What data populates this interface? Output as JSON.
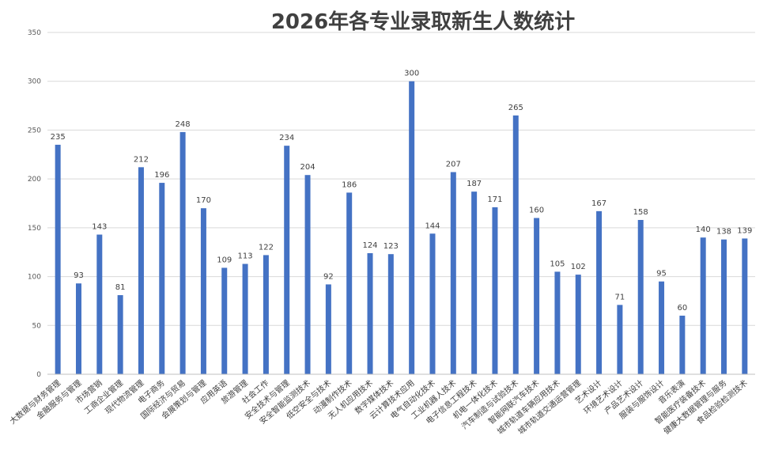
{
  "chart_data": {
    "type": "bar",
    "title": "2026年各专业录取新生人数统计",
    "xlabel": "",
    "ylabel": "",
    "ylim": [
      0,
      350
    ],
    "yticks": [
      0,
      50,
      100,
      150,
      200,
      250,
      300,
      350
    ],
    "grid": true,
    "bar_color": "#4472c4",
    "categories": [
      "大数据与财务管理",
      "金融服务与管理",
      "市场营销",
      "工商企业管理",
      "现代物流管理",
      "电子商务",
      "国际经济与贸易",
      "会展策划与管理",
      "应用英语",
      "旅游管理",
      "社会工作",
      "安全技术与管理",
      "安全智能监测技术",
      "低空安全与技术",
      "动漫制作技术",
      "无人机应用技术",
      "数字媒体技术",
      "云计算技术应用",
      "电气自动化技术",
      "工业机器人技术",
      "电子信息工程技术",
      "机电一体化技术",
      "汽车制造与试验技术",
      "智能网联汽车技术",
      "城市轨道车辆应用技术",
      "城市轨道交通运营管理",
      "艺术设计",
      "环境艺术设计",
      "产品艺术设计",
      "服装与服饰设计",
      "音乐表演",
      "智能医疗装备技术",
      "健康大数据管理与服务",
      "食品检验检测技术"
    ],
    "values": [
      235,
      93,
      143,
      81,
      212,
      196,
      248,
      170,
      109,
      113,
      122,
      234,
      204,
      92,
      186,
      124,
      123,
      300,
      144,
      207,
      187,
      171,
      265,
      160,
      105,
      102,
      167,
      71,
      158,
      95,
      60,
      140,
      138,
      139
    ]
  }
}
